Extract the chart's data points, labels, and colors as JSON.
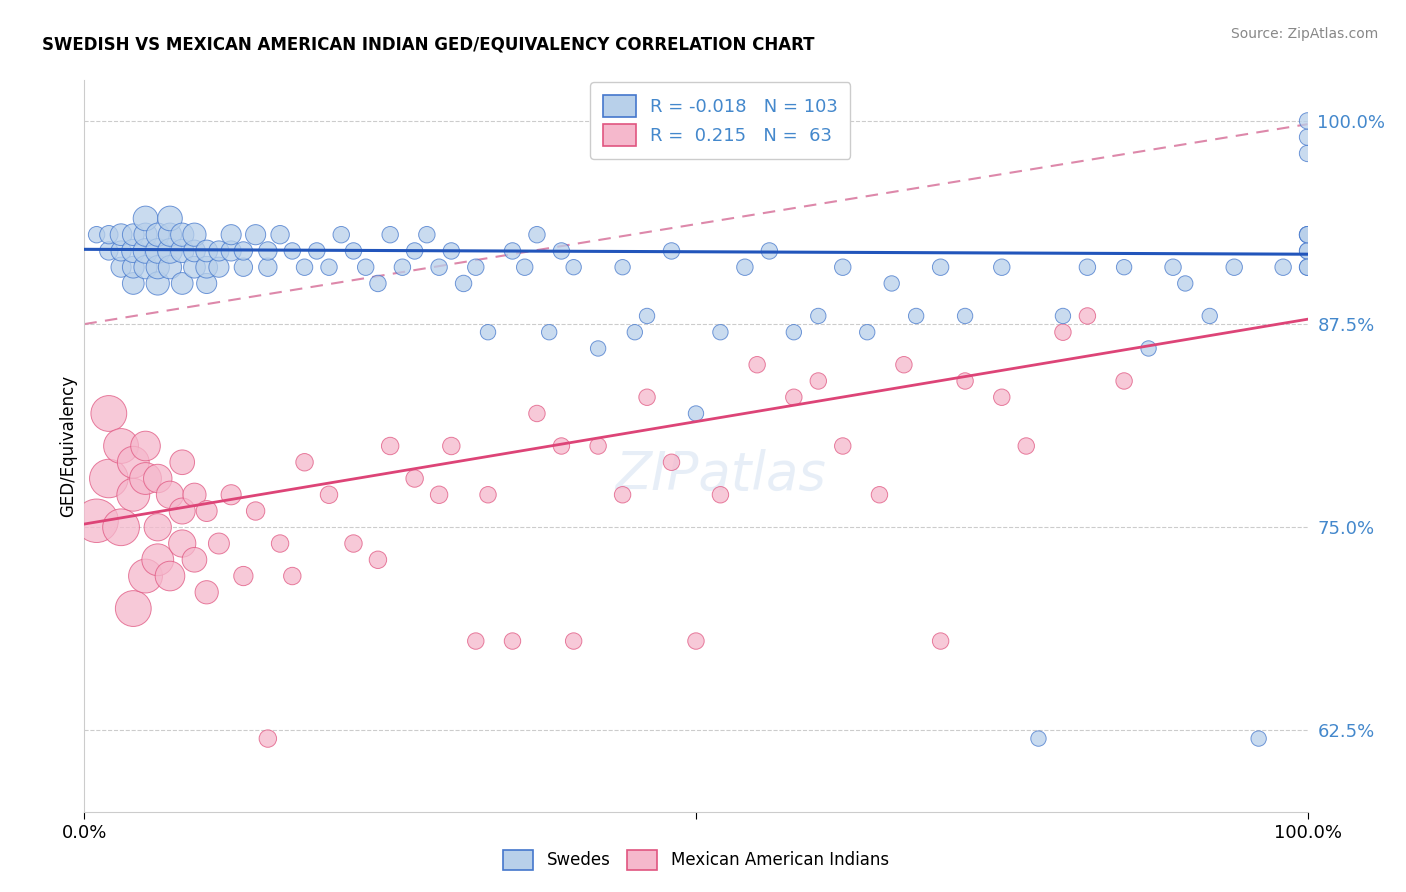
{
  "title": "SWEDISH VS MEXICAN AMERICAN INDIAN GED/EQUIVALENCY CORRELATION CHART",
  "source": "Source: ZipAtlas.com",
  "ylabel": "GED/Equivalency",
  "xlim": [
    0.0,
    1.0
  ],
  "ylim": [
    0.575,
    1.025
  ],
  "yticks": [
    0.625,
    0.75,
    0.875,
    1.0
  ],
  "ytick_labels": [
    "62.5%",
    "75.0%",
    "87.5%",
    "100.0%"
  ],
  "xtick_labels": [
    "0.0%",
    "100.0%"
  ],
  "blue_R": "-0.018",
  "blue_N": "103",
  "pink_R": "0.215",
  "pink_N": "63",
  "blue_fill": "#b8d0ea",
  "pink_fill": "#f5b8cc",
  "blue_edge": "#4477cc",
  "pink_edge": "#e05580",
  "blue_line_color": "#2255bb",
  "pink_line_color": "#dd4477",
  "dashed_line_color": "#dd88aa",
  "legend_label_blue": "Swedes",
  "legend_label_pink": "Mexican American Indians",
  "ytick_color": "#4488cc",
  "blue_trend_y0": 0.921,
  "blue_trend_y1": 0.918,
  "pink_trend_y0": 0.752,
  "pink_trend_y1": 0.878,
  "dashed_trend_y0": 0.875,
  "dashed_trend_y1": 0.998,
  "blue_x": [
    0.01,
    0.02,
    0.02,
    0.03,
    0.03,
    0.03,
    0.04,
    0.04,
    0.04,
    0.04,
    0.05,
    0.05,
    0.05,
    0.05,
    0.06,
    0.06,
    0.06,
    0.06,
    0.07,
    0.07,
    0.07,
    0.07,
    0.08,
    0.08,
    0.08,
    0.09,
    0.09,
    0.09,
    0.1,
    0.1,
    0.1,
    0.11,
    0.11,
    0.12,
    0.12,
    0.13,
    0.13,
    0.14,
    0.15,
    0.15,
    0.16,
    0.17,
    0.18,
    0.19,
    0.2,
    0.21,
    0.22,
    0.23,
    0.24,
    0.25,
    0.26,
    0.27,
    0.28,
    0.29,
    0.3,
    0.31,
    0.32,
    0.33,
    0.35,
    0.36,
    0.37,
    0.38,
    0.39,
    0.4,
    0.42,
    0.44,
    0.45,
    0.46,
    0.48,
    0.5,
    0.52,
    0.54,
    0.56,
    0.58,
    0.6,
    0.62,
    0.64,
    0.66,
    0.68,
    0.7,
    0.72,
    0.75,
    0.78,
    0.8,
    0.82,
    0.85,
    0.87,
    0.89,
    0.9,
    0.92,
    0.94,
    0.96,
    0.98,
    1.0,
    1.0,
    1.0,
    1.0,
    1.0,
    1.0,
    1.0,
    1.0,
    1.0,
    1.0
  ],
  "blue_y": [
    0.93,
    0.92,
    0.93,
    0.91,
    0.92,
    0.93,
    0.9,
    0.91,
    0.92,
    0.93,
    0.91,
    0.92,
    0.93,
    0.94,
    0.9,
    0.91,
    0.92,
    0.93,
    0.91,
    0.92,
    0.93,
    0.94,
    0.9,
    0.92,
    0.93,
    0.91,
    0.92,
    0.93,
    0.9,
    0.91,
    0.92,
    0.91,
    0.92,
    0.92,
    0.93,
    0.91,
    0.92,
    0.93,
    0.91,
    0.92,
    0.93,
    0.92,
    0.91,
    0.92,
    0.91,
    0.93,
    0.92,
    0.91,
    0.9,
    0.93,
    0.91,
    0.92,
    0.93,
    0.91,
    0.92,
    0.9,
    0.91,
    0.87,
    0.92,
    0.91,
    0.93,
    0.87,
    0.92,
    0.91,
    0.86,
    0.91,
    0.87,
    0.88,
    0.92,
    0.82,
    0.87,
    0.91,
    0.92,
    0.87,
    0.88,
    0.91,
    0.87,
    0.9,
    0.88,
    0.91,
    0.88,
    0.91,
    0.62,
    0.88,
    0.91,
    0.91,
    0.86,
    0.91,
    0.9,
    0.88,
    0.91,
    0.62,
    0.91,
    0.93,
    0.92,
    0.91,
    0.93,
    0.98,
    0.99,
    1.0,
    0.92,
    0.91,
    0.93
  ],
  "blue_s": [
    40,
    50,
    50,
    60,
    60,
    70,
    70,
    70,
    80,
    70,
    80,
    90,
    80,
    90,
    80,
    80,
    90,
    80,
    80,
    90,
    80,
    90,
    70,
    80,
    80,
    70,
    70,
    80,
    60,
    70,
    70,
    60,
    60,
    60,
    60,
    50,
    50,
    60,
    50,
    50,
    50,
    40,
    40,
    40,
    40,
    40,
    40,
    40,
    40,
    40,
    40,
    40,
    40,
    40,
    40,
    40,
    40,
    35,
    40,
    40,
    40,
    35,
    40,
    35,
    35,
    35,
    35,
    35,
    40,
    35,
    35,
    40,
    40,
    35,
    35,
    40,
    35,
    35,
    35,
    40,
    35,
    40,
    35,
    35,
    40,
    35,
    35,
    40,
    35,
    35,
    40,
    35,
    40,
    40,
    40,
    40,
    40,
    40,
    40,
    40,
    40,
    40,
    40
  ],
  "pink_x": [
    0.01,
    0.02,
    0.02,
    0.03,
    0.03,
    0.04,
    0.04,
    0.04,
    0.05,
    0.05,
    0.05,
    0.06,
    0.06,
    0.06,
    0.07,
    0.07,
    0.08,
    0.08,
    0.08,
    0.09,
    0.09,
    0.1,
    0.1,
    0.11,
    0.12,
    0.13,
    0.14,
    0.15,
    0.16,
    0.17,
    0.18,
    0.2,
    0.22,
    0.24,
    0.25,
    0.27,
    0.29,
    0.3,
    0.32,
    0.33,
    0.35,
    0.37,
    0.39,
    0.4,
    0.42,
    0.44,
    0.46,
    0.48,
    0.5,
    0.52,
    0.55,
    0.58,
    0.6,
    0.62,
    0.65,
    0.67,
    0.7,
    0.72,
    0.75,
    0.77,
    0.8,
    0.82,
    0.85
  ],
  "pink_y": [
    0.754,
    0.78,
    0.82,
    0.75,
    0.8,
    0.7,
    0.77,
    0.79,
    0.72,
    0.78,
    0.8,
    0.73,
    0.78,
    0.75,
    0.72,
    0.77,
    0.74,
    0.79,
    0.76,
    0.73,
    0.77,
    0.71,
    0.76,
    0.74,
    0.77,
    0.72,
    0.76,
    0.62,
    0.74,
    0.72,
    0.79,
    0.77,
    0.74,
    0.73,
    0.8,
    0.78,
    0.77,
    0.8,
    0.68,
    0.77,
    0.68,
    0.82,
    0.8,
    0.68,
    0.8,
    0.77,
    0.83,
    0.79,
    0.68,
    0.77,
    0.85,
    0.83,
    0.84,
    0.8,
    0.77,
    0.85,
    0.68,
    0.84,
    0.83,
    0.8,
    0.87,
    0.88,
    0.84
  ],
  "pink_s": [
    280,
    220,
    190,
    200,
    180,
    190,
    160,
    150,
    170,
    150,
    130,
    150,
    120,
    110,
    130,
    110,
    110,
    90,
    100,
    90,
    80,
    80,
    65,
    65,
    60,
    55,
    50,
    45,
    45,
    45,
    45,
    45,
    45,
    45,
    45,
    45,
    45,
    45,
    40,
    40,
    40,
    40,
    40,
    40,
    40,
    40,
    40,
    40,
    40,
    40,
    40,
    40,
    40,
    40,
    40,
    40,
    40,
    40,
    40,
    40,
    40,
    40,
    40
  ]
}
